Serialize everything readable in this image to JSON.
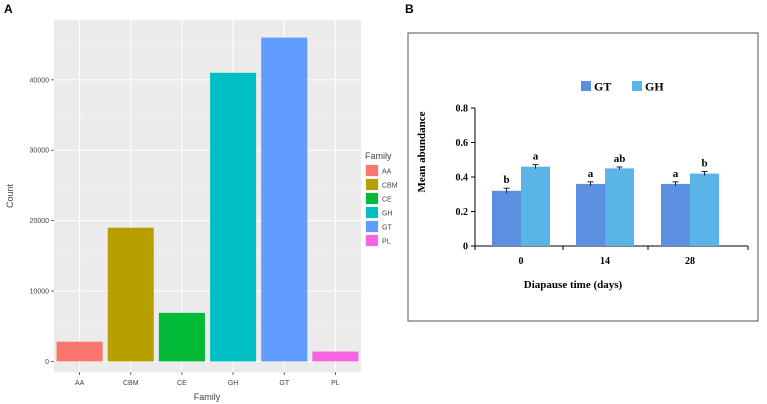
{
  "chart_data": [
    {
      "panel": "A",
      "type": "bar",
      "title": "",
      "xlabel": "Family",
      "ylabel": "Count",
      "categories": [
        "AA",
        "CBM",
        "CE",
        "GH",
        "GT",
        "PL"
      ],
      "values": [
        2800,
        19000,
        6900,
        41000,
        46000,
        1400
      ],
      "colors": [
        "#f8766d",
        "#b79f00",
        "#00ba38",
        "#00bfc4",
        "#619cff",
        "#f564e3"
      ],
      "ylim": [
        -1500,
        48500
      ],
      "yticks": [
        0,
        10000,
        20000,
        30000,
        40000
      ],
      "ytick_labels": [
        "0",
        "10000",
        "20000",
        "30000",
        "40000"
      ],
      "legend": {
        "title": "Family",
        "position": "right",
        "entries": [
          "AA",
          "CBM",
          "CE",
          "GH",
          "GT",
          "PL"
        ]
      }
    },
    {
      "panel": "B",
      "type": "bar",
      "title": "",
      "xlabel": "Diapause time (days)",
      "ylabel": "Mean abundance",
      "categories": [
        "0",
        "14",
        "28"
      ],
      "series": [
        {
          "name": "GT",
          "color": "#5b8fe0",
          "values": [
            0.32,
            0.36,
            0.36
          ],
          "errors": [
            0.015,
            0.012,
            0.012
          ],
          "letters": [
            "b",
            "a",
            "a"
          ]
        },
        {
          "name": "GH",
          "color": "#5ab5e6",
          "values": [
            0.46,
            0.45,
            0.42
          ],
          "errors": [
            0.012,
            0.008,
            0.012
          ],
          "letters": [
            "a",
            "ab",
            "b"
          ]
        }
      ],
      "ylim": [
        0,
        0.8
      ],
      "yticks": [
        0,
        0.2,
        0.4,
        0.6,
        0.8
      ],
      "ytick_labels": [
        "0",
        "0.2",
        "0.4",
        "0.6",
        "0.8"
      ],
      "legend": {
        "position": "top",
        "entries": [
          "GT",
          "GH"
        ]
      }
    }
  ]
}
